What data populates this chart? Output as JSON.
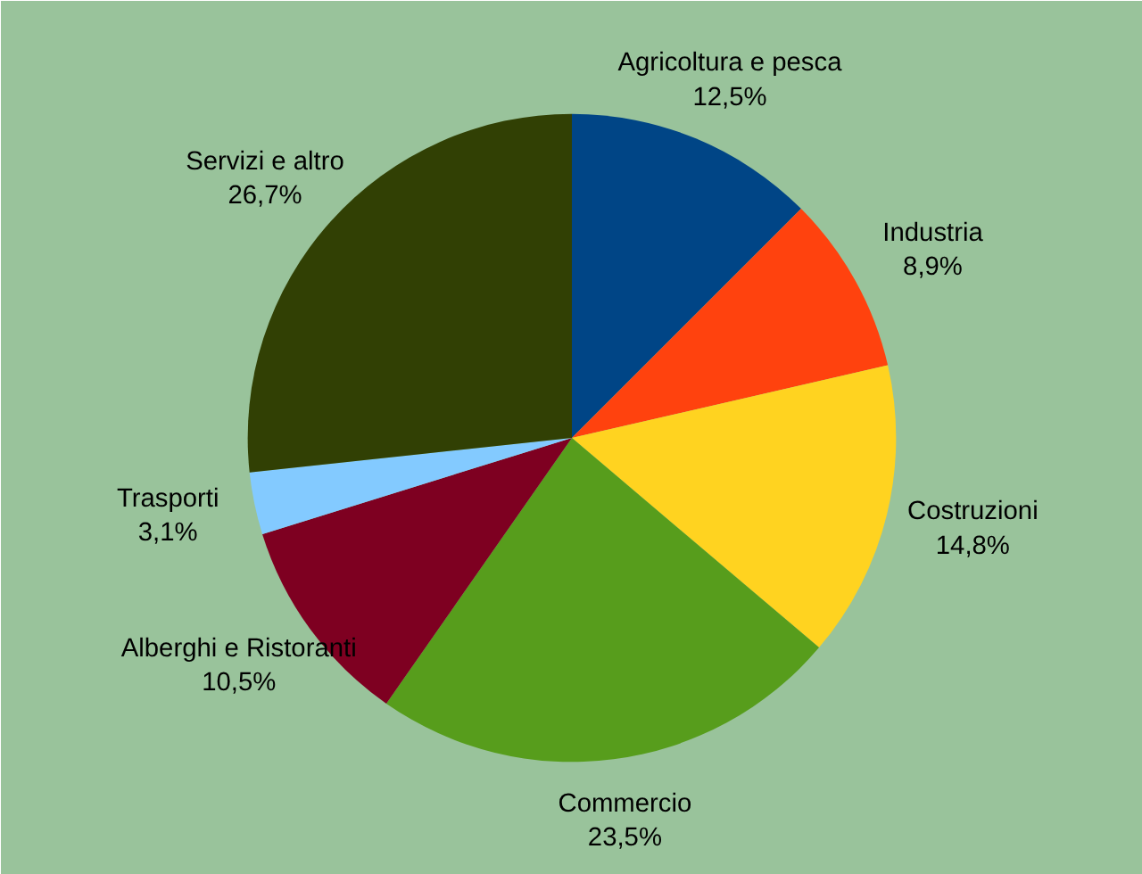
{
  "chart_data": {
    "type": "pie",
    "categories": [
      "Agricoltura e pesca",
      "Industria",
      "Costruzioni",
      "Commercio",
      "Alberghi e Ristoranti",
      "Trasporti",
      "Servizi e altro"
    ],
    "values": [
      12.5,
      8.9,
      14.8,
      23.5,
      10.5,
      3.1,
      26.7
    ],
    "colors": [
      "#004586",
      "#ff420e",
      "#ffd320",
      "#579d1c",
      "#7e0021",
      "#83caff",
      "#314004"
    ],
    "value_labels": [
      "12,5%",
      "8,9%",
      "14,8%",
      "23,5%",
      "10,5%",
      "3,1%",
      "26,7%"
    ]
  }
}
